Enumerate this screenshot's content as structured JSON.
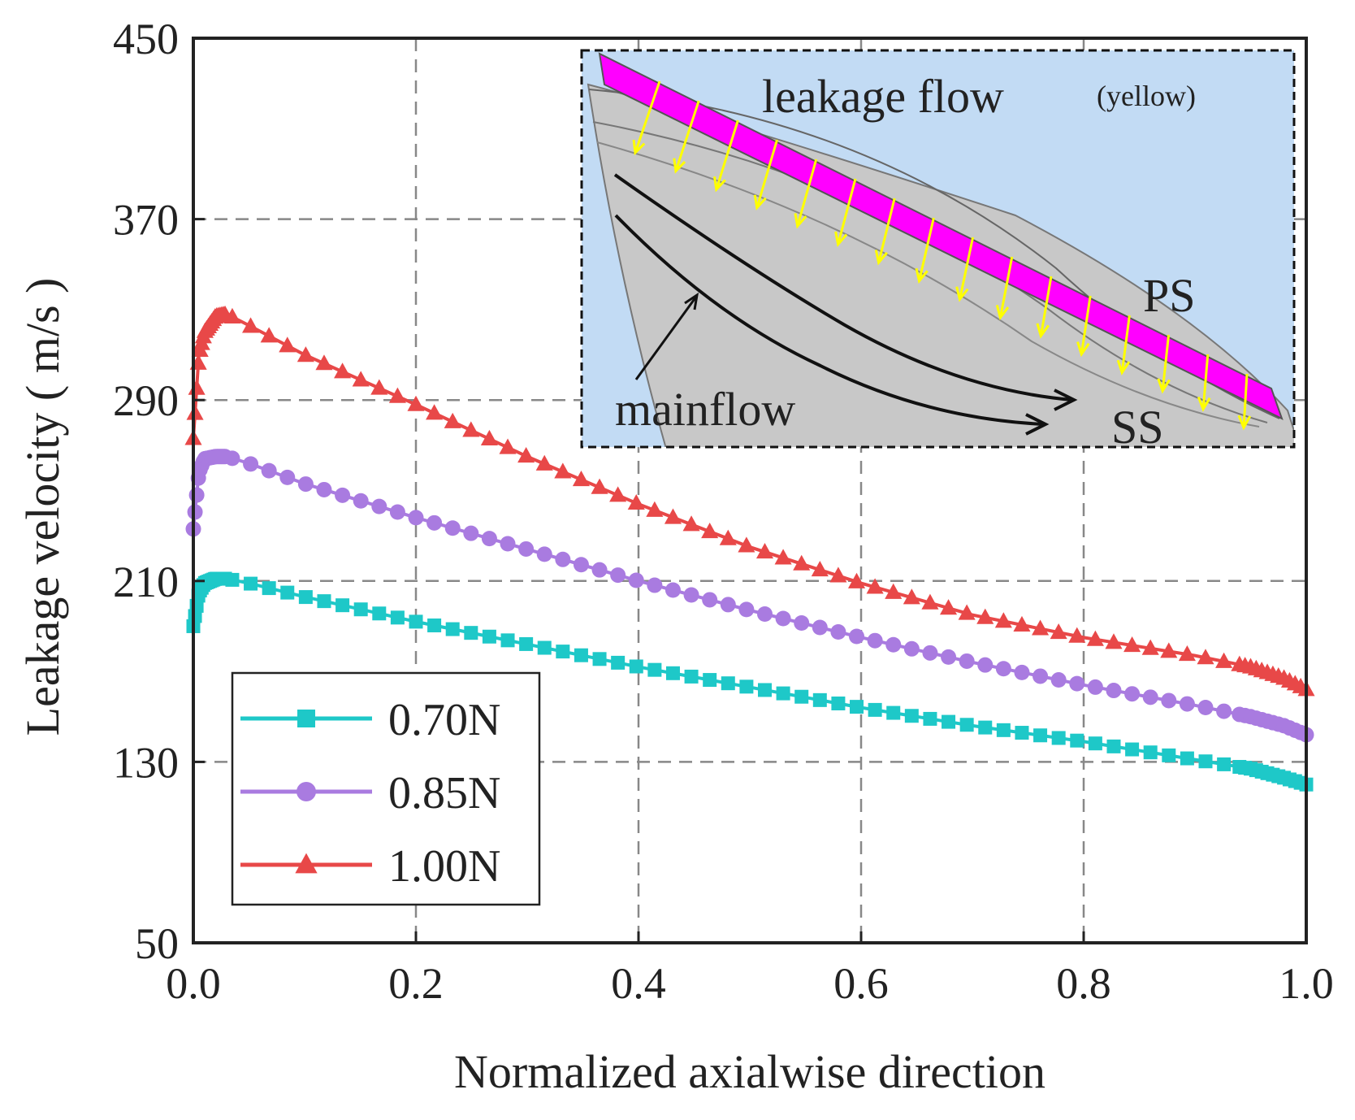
{
  "chart_data": {
    "type": "line",
    "title": "",
    "xlabel": "Normalized axialwise direction",
    "ylabel": "Leakage velocity ( m/s )",
    "xlim": [
      0.0,
      1.0
    ],
    "ylim": [
      50,
      450
    ],
    "x_ticks": [
      "0.0",
      "0.2",
      "0.4",
      "0.6",
      "0.8",
      "1.0"
    ],
    "y_ticks": [
      "50",
      "130",
      "210",
      "290",
      "370",
      "450"
    ],
    "grid": true,
    "legend_position": "bottom-left",
    "series": [
      {
        "name": "0.70N",
        "color": "#1ec8c8",
        "marker": "square",
        "x": [
          0.0,
          0.005,
          0.01,
          0.02,
          0.03,
          0.05,
          0.1,
          0.2,
          0.3,
          0.4,
          0.5,
          0.6,
          0.7,
          0.8,
          0.9,
          0.95,
          0.98,
          1.0
        ],
        "y": [
          190,
          205,
          209,
          211,
          211,
          209,
          203,
          192,
          182,
          172,
          163,
          154,
          146,
          139,
          131,
          127,
          123,
          120
        ]
      },
      {
        "name": "0.85N",
        "color": "#a97be0",
        "marker": "circle",
        "x": [
          0.0,
          0.005,
          0.01,
          0.02,
          0.03,
          0.05,
          0.1,
          0.2,
          0.3,
          0.4,
          0.5,
          0.6,
          0.7,
          0.8,
          0.9,
          0.95,
          0.98,
          1.0
        ],
        "y": [
          233,
          258,
          264,
          265,
          265,
          262,
          253,
          238,
          224,
          210,
          197,
          185,
          174,
          164,
          155,
          150,
          146,
          142
        ]
      },
      {
        "name": "1.00N",
        "color": "#e84848",
        "marker": "triangle",
        "x": [
          0.0,
          0.005,
          0.01,
          0.02,
          0.03,
          0.05,
          0.1,
          0.2,
          0.3,
          0.4,
          0.5,
          0.6,
          0.7,
          0.8,
          0.9,
          0.95,
          0.98,
          1.0
        ],
        "y": [
          273,
          310,
          320,
          327,
          328,
          323,
          310,
          288,
          265,
          244,
          225,
          209,
          195,
          185,
          177,
          172,
          167,
          162
        ]
      }
    ],
    "inset": {
      "labels": {
        "leakage": "leakage flow",
        "yellow": "(yellow)",
        "ps": "PS",
        "ss": "SS",
        "mainflow": "mainflow"
      },
      "colors": {
        "background": "#c2dbf4",
        "blade": "#c8c8c8",
        "tip_strip": "#ff00ff",
        "arrows": "#ffff00"
      }
    }
  }
}
